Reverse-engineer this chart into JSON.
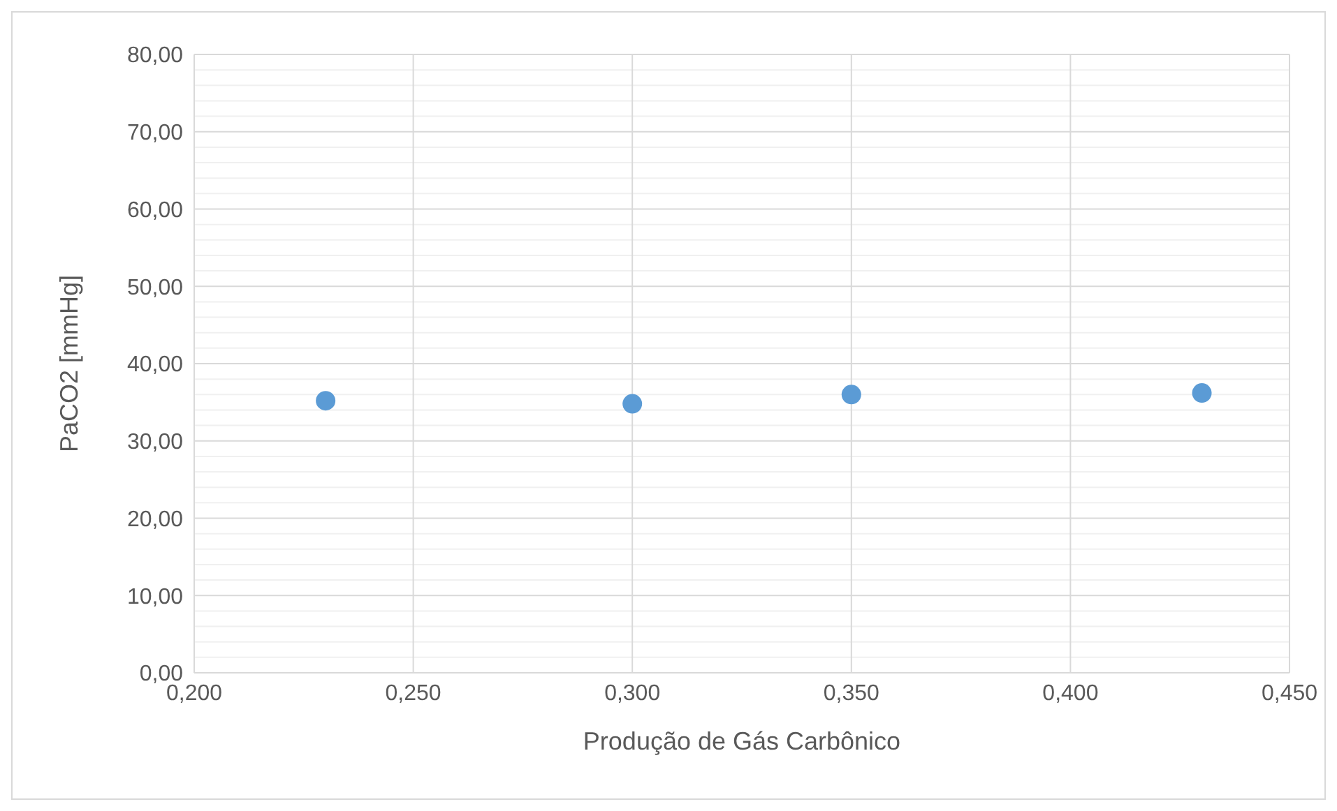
{
  "chart_data": {
    "type": "scatter",
    "xlabel": "Produção de Gás Carbônico",
    "ylabel": "PaCO2 [mmHg]",
    "x": [
      0.23,
      0.3,
      0.35,
      0.43
    ],
    "series": [
      {
        "color": "#5b9bd5",
        "values": [
          35.2,
          34.8,
          36.0,
          36.2
        ]
      }
    ],
    "xlim": [
      0.2,
      0.45
    ],
    "xticks": [
      {
        "value": 0.2,
        "label": "0,200"
      },
      {
        "value": 0.25,
        "label": "0,250"
      },
      {
        "value": 0.3,
        "label": "0,300"
      },
      {
        "value": 0.35,
        "label": "0,350"
      },
      {
        "value": 0.4,
        "label": "0,400"
      },
      {
        "value": 0.45,
        "label": "0,450"
      }
    ],
    "ylim": [
      0,
      80
    ],
    "yticks": [
      {
        "value": 0,
        "label": "0,00"
      },
      {
        "value": 10,
        "label": "10,00"
      },
      {
        "value": 20,
        "label": "20,00"
      },
      {
        "value": 30,
        "label": "30,00"
      },
      {
        "value": 40,
        "label": "40,00"
      },
      {
        "value": 50,
        "label": "50,00"
      },
      {
        "value": 60,
        "label": "60,00"
      },
      {
        "value": 70,
        "label": "70,00"
      },
      {
        "value": 80,
        "label": "80,00"
      }
    ],
    "grid": true,
    "marker": "circle"
  }
}
